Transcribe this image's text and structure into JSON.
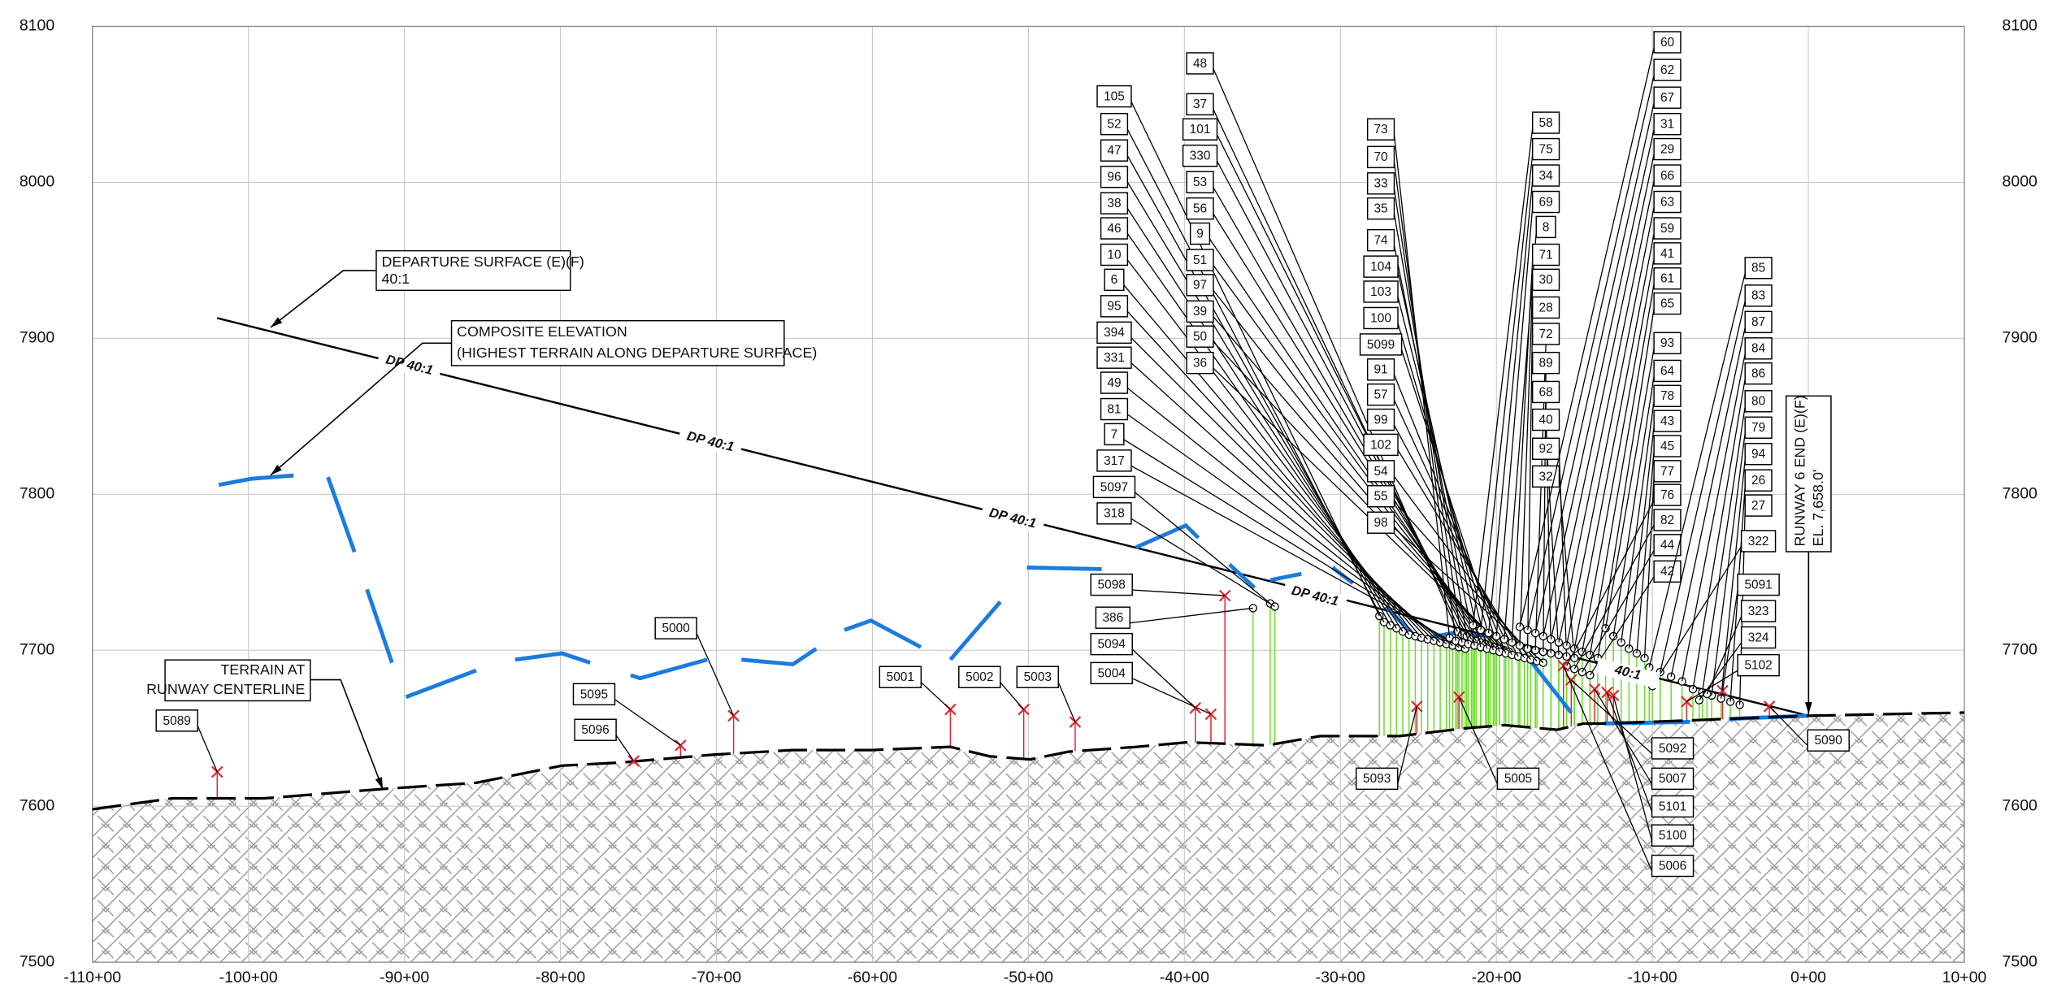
{
  "chart_data": {
    "type": "profile",
    "xlim": [
      -110,
      10
    ],
    "ylim": [
      7500,
      8100
    ],
    "xticks": [
      {
        "value": -110,
        "label": "-110+00"
      },
      {
        "value": -100,
        "label": "-100+00"
      },
      {
        "value": -90,
        "label": "-90+00"
      },
      {
        "value": -80,
        "label": "-80+00"
      },
      {
        "value": -70,
        "label": "-70+00"
      },
      {
        "value": -60,
        "label": "-60+00"
      },
      {
        "value": -50,
        "label": "-50+00"
      },
      {
        "value": -40,
        "label": "-40+00"
      },
      {
        "value": -30,
        "label": "-30+00"
      },
      {
        "value": -20,
        "label": "-20+00"
      },
      {
        "value": -10,
        "label": "-10+00"
      },
      {
        "value": 0,
        "label": "0+00"
      },
      {
        "value": 10,
        "label": "10+00"
      }
    ],
    "yticks": [
      7500,
      7600,
      7700,
      7800,
      7900,
      8000,
      8100
    ],
    "grid": true,
    "series": [
      {
        "color": "#000000",
        "style": "solid",
        "x": [
          -102,
          0
        ],
        "values": [
          7913,
          7658
        ]
      },
      {
        "color": "#1a7be0",
        "style": "solid",
        "x": [
          -101.9,
          -99.8,
          -97.1,
          null,
          -94.9,
          -93.2,
          null,
          -92.4,
          -90.8,
          null,
          -89.9,
          -85.4,
          null,
          -82.9,
          -79.9,
          -78.1,
          null,
          -75.5,
          -74.9,
          -70.6,
          null,
          -68.4,
          -65.1,
          -63.6,
          null,
          -61.8,
          -60.1,
          -56.9,
          null,
          -55.0,
          -51.8,
          null,
          -50.1,
          -45.3,
          null,
          -43.1,
          -39.9,
          -39.1,
          null,
          -37.1,
          -35.5,
          null,
          -34.5,
          -32.5,
          null,
          -30.5,
          -29.2,
          null,
          -27.1,
          -25.0,
          -22.8,
          -20.3,
          null,
          -18.2,
          -15.2,
          null,
          -13.1,
          -7.6,
          null,
          -5.1,
          0
        ],
        "values": [
          7806,
          7810,
          7812,
          null,
          7811,
          7763,
          null,
          7739,
          7692,
          null,
          7670,
          7687,
          null,
          7694,
          7698,
          7692,
          null,
          7684,
          7682,
          7694,
          null,
          7694,
          7691,
          7701,
          null,
          7713,
          7719,
          7702,
          null,
          7694,
          7731,
          null,
          7753,
          7752,
          null,
          7766,
          7780,
          7772,
          null,
          7755,
          7740,
          null,
          7745,
          7749,
          null,
          7753,
          7743,
          null,
          7728,
          7707,
          7711,
          7709,
          null,
          7698,
          7660,
          null,
          7653,
          7654,
          null,
          7656,
          7658
        ]
      },
      {
        "color": "#000000",
        "style": "dashed",
        "x": [
          -110,
          -104.9,
          -99.0,
          -91.4,
          -85.4,
          -79.9,
          -76.1,
          -70.2,
          -65.1,
          -60.1,
          -55.0,
          -52.5,
          -49.9,
          -47.4,
          -43.1,
          -39.8,
          -34.7,
          -31.3,
          -26.2,
          -22.0,
          -19.5,
          -16.1,
          -14.4,
          -13.1,
          -7.6,
          0,
          5.1,
          10
        ],
        "values": [
          7598,
          7605,
          7605,
          7611,
          7615,
          7626,
          7628,
          7633,
          7636,
          7636,
          7638,
          7632,
          7630,
          7635,
          7638,
          7641,
          7639,
          7645,
          7645,
          7650,
          7652,
          7649,
          7653,
          7653,
          7655,
          7658,
          7659,
          7660
        ]
      }
    ],
    "annotations": [
      {
        "lines": [
          "DEPARTURE SURFACE (E)(F)",
          "40:1"
        ]
      },
      {
        "lines": [
          "COMPOSITE ELEVATION",
          "(HIGHEST TERRAIN ALONG DEPARTURE SURFACE)"
        ]
      },
      {
        "lines": [
          "TERRAIN AT",
          "RUNWAY CENTERLINE"
        ]
      },
      {
        "lines": [
          "RUNWAY 6 END (E)(F)",
          "EL. 7,658.0'"
        ]
      }
    ],
    "dp_labels": [
      "DP 40:1",
      "DP 40:1",
      "DP 40:1",
      "DP 40:1",
      "40:1"
    ],
    "obstacles": [
      {
        "label": "105",
        "x": -27.5,
        "y": 7722,
        "marker": "circle"
      },
      {
        "label": "52",
        "x": -27.2,
        "y": 7718,
        "marker": "circle"
      },
      {
        "label": "47",
        "x": -26.8,
        "y": 7716,
        "marker": "circle"
      },
      {
        "label": "96",
        "x": -26.4,
        "y": 7714,
        "marker": "circle"
      },
      {
        "label": "38",
        "x": -26.0,
        "y": 7712,
        "marker": "circle"
      },
      {
        "label": "46",
        "x": -25.6,
        "y": 7710,
        "marker": "circle"
      },
      {
        "label": "10",
        "x": -25.2,
        "y": 7709,
        "marker": "circle"
      },
      {
        "label": "6",
        "x": -24.8,
        "y": 7708,
        "marker": "circle"
      },
      {
        "label": "95",
        "x": -24.4,
        "y": 7707,
        "marker": "circle"
      },
      {
        "label": "394",
        "x": -24.0,
        "y": 7706,
        "marker": "circle"
      },
      {
        "label": "331",
        "x": -23.6,
        "y": 7705,
        "marker": "circle"
      },
      {
        "label": "49",
        "x": -23.2,
        "y": 7704,
        "marker": "circle"
      },
      {
        "label": "81",
        "x": -22.8,
        "y": 7703,
        "marker": "circle"
      },
      {
        "label": "7",
        "x": -22.4,
        "y": 7702,
        "marker": "circle"
      },
      {
        "label": "317",
        "x": -22.0,
        "y": 7701,
        "marker": "circle"
      },
      {
        "label": "5097",
        "x": -34.5,
        "y": 7730,
        "marker": "circle"
      },
      {
        "label": "318",
        "x": -34.2,
        "y": 7728,
        "marker": "circle"
      },
      {
        "label": "48",
        "x": -22.5,
        "y": 7712,
        "marker": "circle"
      },
      {
        "label": "37",
        "x": -22.2,
        "y": 7710,
        "marker": "circle"
      },
      {
        "label": "101",
        "x": -21.9,
        "y": 7709,
        "marker": "circle"
      },
      {
        "label": "330",
        "x": -21.6,
        "y": 7707,
        "marker": "circle"
      },
      {
        "label": "53",
        "x": -21.3,
        "y": 7706,
        "marker": "circle"
      },
      {
        "label": "56",
        "x": -21.0,
        "y": 7705,
        "marker": "circle"
      },
      {
        "label": "9",
        "x": -20.7,
        "y": 7704,
        "marker": "circle"
      },
      {
        "label": "51",
        "x": -20.4,
        "y": 7703,
        "marker": "circle"
      },
      {
        "label": "97",
        "x": -20.1,
        "y": 7702,
        "marker": "circle"
      },
      {
        "label": "39",
        "x": -19.8,
        "y": 7701,
        "marker": "circle"
      },
      {
        "label": "50",
        "x": -19.5,
        "y": 7700,
        "marker": "circle"
      },
      {
        "label": "36",
        "x": -19.2,
        "y": 7699,
        "marker": "circle"
      },
      {
        "label": "73",
        "x": -23.0,
        "y": 7708,
        "marker": "circle"
      },
      {
        "label": "70",
        "x": -22.6,
        "y": 7706,
        "marker": "circle"
      },
      {
        "label": "33",
        "x": -22.2,
        "y": 7705,
        "marker": "circle"
      },
      {
        "label": "35",
        "x": -21.8,
        "y": 7704,
        "marker": "circle"
      },
      {
        "label": "74",
        "x": -21.4,
        "y": 7703,
        "marker": "circle"
      },
      {
        "label": "104",
        "x": -21.0,
        "y": 7702,
        "marker": "circle"
      },
      {
        "label": "103",
        "x": -20.6,
        "y": 7701,
        "marker": "circle"
      },
      {
        "label": "100",
        "x": -20.2,
        "y": 7700,
        "marker": "circle"
      },
      {
        "label": "5099",
        "x": -19.8,
        "y": 7699,
        "marker": "circle"
      },
      {
        "label": "91",
        "x": -19.4,
        "y": 7698,
        "marker": "circle"
      },
      {
        "label": "57",
        "x": -19.0,
        "y": 7697,
        "marker": "circle"
      },
      {
        "label": "99",
        "x": -18.6,
        "y": 7696,
        "marker": "circle"
      },
      {
        "label": "102",
        "x": -18.2,
        "y": 7695,
        "marker": "circle"
      },
      {
        "label": "54",
        "x": -17.8,
        "y": 7694,
        "marker": "circle"
      },
      {
        "label": "55",
        "x": -17.4,
        "y": 7693,
        "marker": "circle"
      },
      {
        "label": "98",
        "x": -17.0,
        "y": 7692,
        "marker": "circle"
      },
      {
        "label": "58",
        "x": -21.5,
        "y": 7716,
        "marker": "circle"
      },
      {
        "label": "75",
        "x": -21.0,
        "y": 7713,
        "marker": "circle"
      },
      {
        "label": "34",
        "x": -20.5,
        "y": 7711,
        "marker": "circle"
      },
      {
        "label": "69",
        "x": -20.0,
        "y": 7709,
        "marker": "circle"
      },
      {
        "label": "8",
        "x": -19.5,
        "y": 7707,
        "marker": "circle"
      },
      {
        "label": "71",
        "x": -19.0,
        "y": 7705,
        "marker": "circle"
      },
      {
        "label": "30",
        "x": -18.5,
        "y": 7703,
        "marker": "circle"
      },
      {
        "label": "28",
        "x": -18.0,
        "y": 7701,
        "marker": "circle"
      },
      {
        "label": "72",
        "x": -17.5,
        "y": 7700,
        "marker": "circle"
      },
      {
        "label": "89",
        "x": -17.0,
        "y": 7699,
        "marker": "circle"
      },
      {
        "label": "68",
        "x": -16.5,
        "y": 7698,
        "marker": "circle"
      },
      {
        "label": "40",
        "x": -16.0,
        "y": 7697,
        "marker": "circle"
      },
      {
        "label": "92",
        "x": -15.5,
        "y": 7696,
        "marker": "circle"
      },
      {
        "label": "32",
        "x": -15.0,
        "y": 7695,
        "marker": "circle"
      },
      {
        "label": "60",
        "x": -18.5,
        "y": 7715,
        "marker": "circle"
      },
      {
        "label": "62",
        "x": -18.0,
        "y": 7713,
        "marker": "circle"
      },
      {
        "label": "67",
        "x": -17.5,
        "y": 7711,
        "marker": "circle"
      },
      {
        "label": "31",
        "x": -17.0,
        "y": 7709,
        "marker": "circle"
      },
      {
        "label": "29",
        "x": -16.5,
        "y": 7707,
        "marker": "circle"
      },
      {
        "label": "66",
        "x": -16.0,
        "y": 7705,
        "marker": "circle"
      },
      {
        "label": "63",
        "x": -15.5,
        "y": 7703,
        "marker": "circle"
      },
      {
        "label": "59",
        "x": -15.0,
        "y": 7701,
        "marker": "circle"
      },
      {
        "label": "41",
        "x": -14.5,
        "y": 7699,
        "marker": "circle"
      },
      {
        "label": "61",
        "x": -14.0,
        "y": 7697,
        "marker": "circle"
      },
      {
        "label": "65",
        "x": -13.5,
        "y": 7695,
        "marker": "circle"
      },
      {
        "label": "93",
        "x": -13.0,
        "y": 7714,
        "marker": "circle"
      },
      {
        "label": "64",
        "x": -12.5,
        "y": 7709,
        "marker": "circle"
      },
      {
        "label": "78",
        "x": -12.0,
        "y": 7705,
        "marker": "circle"
      },
      {
        "label": "43",
        "x": -11.5,
        "y": 7701,
        "marker": "circle"
      },
      {
        "label": "45",
        "x": -11.0,
        "y": 7698,
        "marker": "circle"
      },
      {
        "label": "77",
        "x": -10.5,
        "y": 7695,
        "marker": "circle"
      },
      {
        "label": "76",
        "x": -15.5,
        "y": 7690,
        "marker": "circle"
      },
      {
        "label": "82",
        "x": -15.0,
        "y": 7688,
        "marker": "circle"
      },
      {
        "label": "44",
        "x": -14.5,
        "y": 7686,
        "marker": "circle"
      },
      {
        "label": "42",
        "x": -14.0,
        "y": 7684,
        "marker": "circle"
      },
      {
        "label": "85",
        "x": -10.2,
        "y": 7689,
        "marker": "circle"
      },
      {
        "label": "83",
        "x": -9.5,
        "y": 7686,
        "marker": "circle"
      },
      {
        "label": "87",
        "x": -8.8,
        "y": 7683,
        "marker": "circle"
      },
      {
        "label": "84",
        "x": -8.1,
        "y": 7680,
        "marker": "circle"
      },
      {
        "label": "86",
        "x": -7.4,
        "y": 7675,
        "marker": "circle"
      },
      {
        "label": "80",
        "x": -6.8,
        "y": 7673,
        "marker": "circle"
      },
      {
        "label": "79",
        "x": -6.2,
        "y": 7671,
        "marker": "circle"
      },
      {
        "label": "94",
        "x": -5.6,
        "y": 7669,
        "marker": "circle"
      },
      {
        "label": "26",
        "x": -5.0,
        "y": 7667,
        "marker": "circle"
      },
      {
        "label": "27",
        "x": -4.4,
        "y": 7665,
        "marker": "circle"
      },
      {
        "label": "322",
        "x": -10.0,
        "y": 7677,
        "marker": "circle"
      },
      {
        "label": "5091",
        "x": -5.5,
        "y": 7674,
        "marker": "x"
      },
      {
        "label": "323",
        "x": -6.5,
        "y": 7672,
        "marker": "circle"
      },
      {
        "label": "324",
        "x": -7.0,
        "y": 7668,
        "marker": "circle"
      },
      {
        "label": "5102",
        "x": -7.8,
        "y": 7667,
        "marker": "x"
      },
      {
        "label": "5098",
        "x": -37.4,
        "y": 7735,
        "marker": "x"
      },
      {
        "label": "386",
        "x": -35.6,
        "y": 7727,
        "marker": "circle"
      },
      {
        "label": "5094",
        "x": -39.3,
        "y": 7663,
        "marker": "x"
      },
      {
        "label": "5004",
        "x": -38.3,
        "y": 7659,
        "marker": "x"
      },
      {
        "label": "5089",
        "x": -102,
        "y": 7622,
        "marker": "x"
      },
      {
        "label": "5095",
        "x": -72.3,
        "y": 7639,
        "marker": "x"
      },
      {
        "label": "5096",
        "x": -75.3,
        "y": 7629,
        "marker": "x"
      },
      {
        "label": "5000",
        "x": -68.9,
        "y": 7658,
        "marker": "x"
      },
      {
        "label": "5001",
        "x": -55,
        "y": 7662,
        "marker": "x"
      },
      {
        "label": "5002",
        "x": -50.3,
        "y": 7662,
        "marker": "x"
      },
      {
        "label": "5003",
        "x": -47,
        "y": 7654,
        "marker": "x"
      },
      {
        "label": "5093",
        "x": -25.1,
        "y": 7664,
        "marker": "x"
      },
      {
        "label": "5005",
        "x": -22.4,
        "y": 7670,
        "marker": "x"
      },
      {
        "label": "5092",
        "x": -15.2,
        "y": 7681,
        "marker": "x"
      },
      {
        "label": "5007",
        "x": -13.7,
        "y": 7675,
        "marker": "x"
      },
      {
        "label": "5101",
        "x": -12.9,
        "y": 7673,
        "marker": "x"
      },
      {
        "label": "5100",
        "x": -12.5,
        "y": 7671,
        "marker": "x"
      },
      {
        "label": "5006",
        "x": -15.7,
        "y": 7690,
        "marker": "x"
      },
      {
        "label": "5090",
        "x": -2.5,
        "y": 7664,
        "marker": "x"
      }
    ]
  }
}
